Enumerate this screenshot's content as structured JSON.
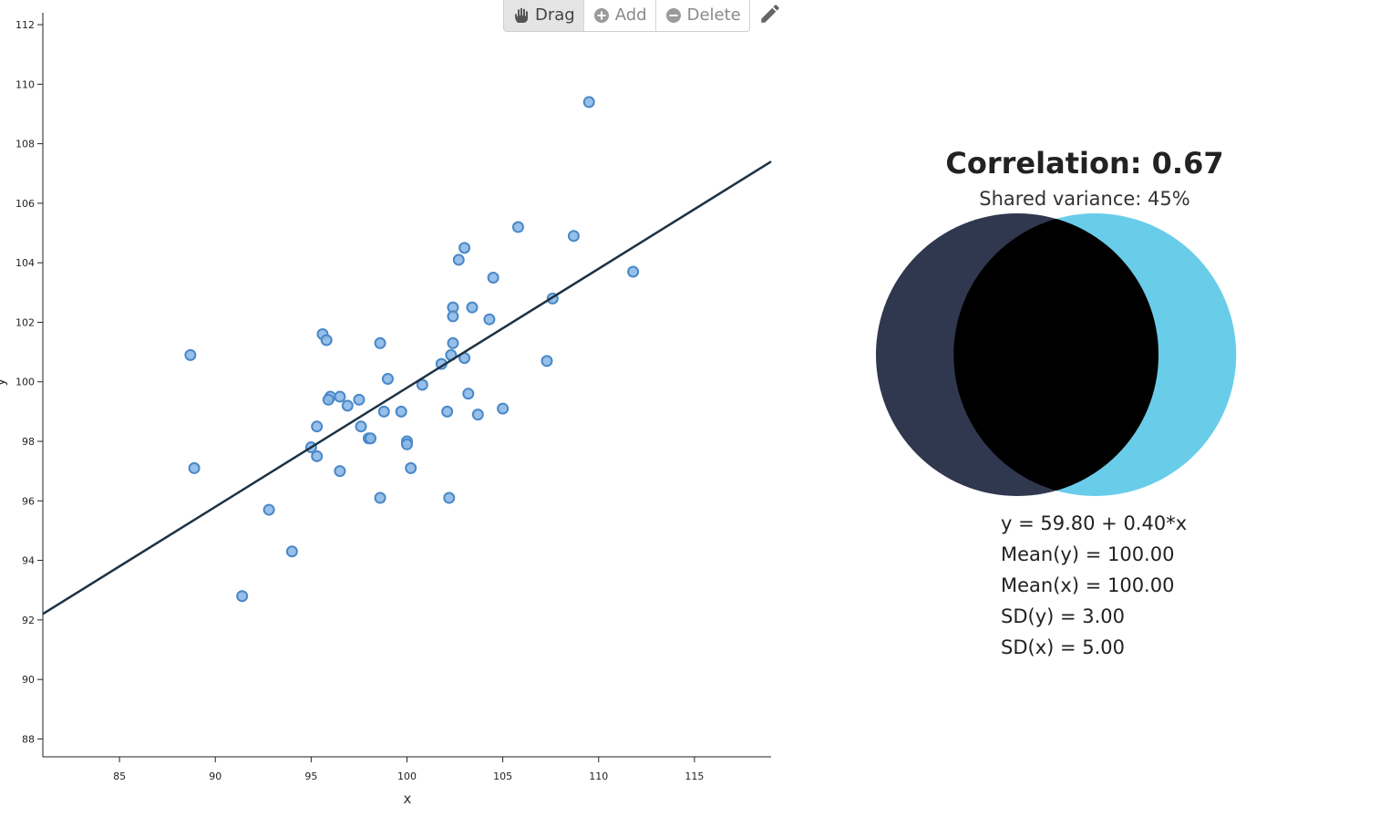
{
  "toolbar": {
    "drag_label": "Drag",
    "add_label": "Add",
    "delete_label": "Delete",
    "active_tool": "drag",
    "pencil_icon": "pencil-icon"
  },
  "chart_data": {
    "type": "scatter",
    "xlabel": "x",
    "ylabel": "y",
    "xlim": [
      81,
      119
    ],
    "ylim": [
      87.4,
      112.4
    ],
    "x_ticks": [
      85,
      90,
      95,
      100,
      105,
      110,
      115
    ],
    "y_ticks": [
      88,
      90,
      92,
      94,
      96,
      98,
      100,
      102,
      104,
      106,
      108,
      110,
      112
    ],
    "grid": false,
    "regression_line": {
      "intercept": 59.8,
      "slope": 0.4
    },
    "point_color": "#8bb8e8",
    "point_stroke": "#4a88c7",
    "line_color": "#1c3144",
    "points": [
      [
        109.5,
        109.4
      ],
      [
        105.8,
        105.2
      ],
      [
        108.7,
        104.9
      ],
      [
        103.0,
        104.5
      ],
      [
        102.7,
        104.1
      ],
      [
        111.8,
        103.7
      ],
      [
        104.5,
        103.5
      ],
      [
        107.6,
        102.8
      ],
      [
        103.4,
        102.5
      ],
      [
        102.4,
        102.5
      ],
      [
        102.4,
        102.2
      ],
      [
        104.3,
        102.1
      ],
      [
        95.6,
        101.6
      ],
      [
        95.8,
        101.4
      ],
      [
        98.6,
        101.3
      ],
      [
        102.4,
        101.3
      ],
      [
        88.7,
        100.9
      ],
      [
        102.3,
        100.9
      ],
      [
        103.0,
        100.8
      ],
      [
        107.3,
        100.7
      ],
      [
        101.8,
        100.6
      ],
      [
        99.0,
        100.1
      ],
      [
        100.8,
        99.9
      ],
      [
        103.2,
        99.6
      ],
      [
        96.0,
        99.5
      ],
      [
        96.5,
        99.5
      ],
      [
        95.9,
        99.4
      ],
      [
        97.5,
        99.4
      ],
      [
        96.9,
        99.2
      ],
      [
        105.0,
        99.1
      ],
      [
        98.8,
        99.0
      ],
      [
        99.7,
        99.0
      ],
      [
        102.1,
        99.0
      ],
      [
        103.7,
        98.9
      ],
      [
        95.3,
        98.5
      ],
      [
        97.6,
        98.5
      ],
      [
        98.0,
        98.1
      ],
      [
        98.1,
        98.1
      ],
      [
        100.0,
        98.0
      ],
      [
        100.0,
        97.9
      ],
      [
        95.0,
        97.8
      ],
      [
        95.3,
        97.5
      ],
      [
        88.9,
        97.1
      ],
      [
        100.2,
        97.1
      ],
      [
        96.5,
        97.0
      ],
      [
        98.6,
        96.1
      ],
      [
        102.2,
        96.1
      ],
      [
        92.8,
        95.7
      ],
      [
        94.0,
        94.3
      ],
      [
        91.4,
        92.8
      ]
    ]
  },
  "summary": {
    "correlation_text": "Correlation: 0.67",
    "shared_variance_text": "Shared variance: 45%",
    "equation": "y = 59.80 + 0.40*x",
    "mean_y": "Mean(y) = 100.00",
    "mean_x": "Mean(x) = 100.00",
    "sd_y": "SD(y) = 3.00",
    "sd_x": "SD(x) = 5.00"
  },
  "venn": {
    "shared_variance": 0.45,
    "left_color": "#30384f",
    "right_color": "#69cde9",
    "overlap_color": "#000000"
  }
}
